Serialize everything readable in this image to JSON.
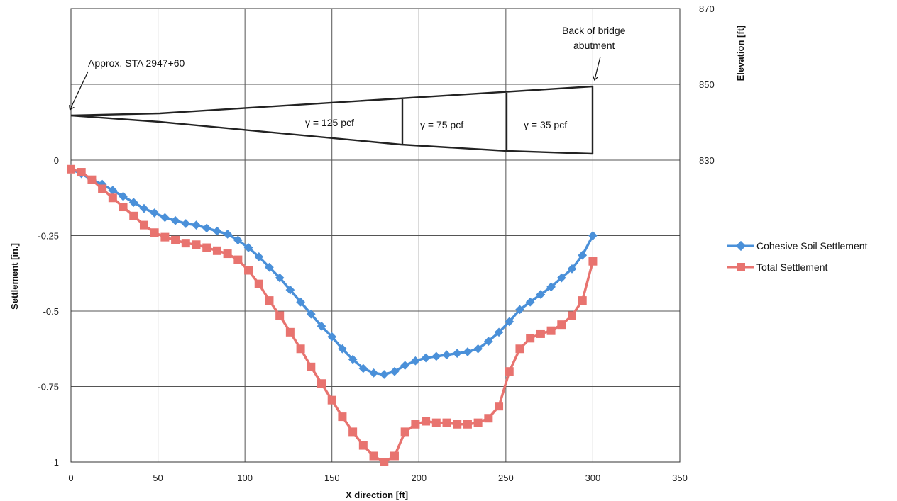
{
  "chart_data": {
    "type": "line",
    "xlabel": "X direction [ft]",
    "ylabel": "Settlement [in.]",
    "y2label": "Elevation [ft]",
    "xlim": [
      0,
      350
    ],
    "ylim": [
      -1,
      0
    ],
    "y2lim": [
      830,
      870
    ],
    "x_ticks": [
      "0",
      "50",
      "100",
      "150",
      "200",
      "250",
      "300",
      "350"
    ],
    "y_ticks": [
      "0",
      "-0.25",
      "-0.5",
      "-0.75",
      "-1"
    ],
    "y2_ticks": [
      "870",
      "850",
      "830"
    ],
    "grid": true,
    "legend_position": "right",
    "series": [
      {
        "name": "Cohesive Soil Settlement",
        "color": "#4a90d9",
        "marker": "diamond",
        "x": [
          0,
          6,
          12,
          18,
          24,
          30,
          36,
          42,
          48,
          54,
          60,
          66,
          72,
          78,
          84,
          90,
          96,
          102,
          108,
          114,
          120,
          126,
          132,
          138,
          144,
          150,
          156,
          162,
          168,
          174,
          180,
          186,
          192,
          198,
          204,
          210,
          216,
          222,
          228,
          234,
          240,
          246,
          252,
          258,
          264,
          270,
          276,
          282,
          288,
          294,
          300
        ],
        "values": [
          -0.03,
          -0.045,
          -0.065,
          -0.08,
          -0.1,
          -0.12,
          -0.14,
          -0.16,
          -0.175,
          -0.19,
          -0.2,
          -0.21,
          -0.215,
          -0.225,
          -0.235,
          -0.245,
          -0.265,
          -0.29,
          -0.32,
          -0.355,
          -0.39,
          -0.43,
          -0.47,
          -0.51,
          -0.55,
          -0.585,
          -0.625,
          -0.66,
          -0.69,
          -0.705,
          -0.71,
          -0.7,
          -0.68,
          -0.665,
          -0.655,
          -0.65,
          -0.645,
          -0.64,
          -0.635,
          -0.625,
          -0.6,
          -0.57,
          -0.535,
          -0.495,
          -0.47,
          -0.445,
          -0.42,
          -0.39,
          -0.36,
          -0.315,
          -0.25
        ]
      },
      {
        "name": "Total Settlement",
        "color": "#e8736f",
        "marker": "square",
        "x": [
          0,
          6,
          12,
          18,
          24,
          30,
          36,
          42,
          48,
          54,
          60,
          66,
          72,
          78,
          84,
          90,
          96,
          102,
          108,
          114,
          120,
          126,
          132,
          138,
          144,
          150,
          156,
          162,
          168,
          174,
          180,
          186,
          192,
          198,
          204,
          210,
          216,
          222,
          228,
          234,
          240,
          246,
          252,
          258,
          264,
          270,
          276,
          282,
          288,
          294,
          300
        ],
        "values": [
          -0.03,
          -0.04,
          -0.065,
          -0.095,
          -0.125,
          -0.155,
          -0.185,
          -0.215,
          -0.24,
          -0.255,
          -0.265,
          -0.275,
          -0.28,
          -0.29,
          -0.3,
          -0.31,
          -0.33,
          -0.365,
          -0.41,
          -0.465,
          -0.515,
          -0.57,
          -0.625,
          -0.685,
          -0.74,
          -0.795,
          -0.85,
          -0.9,
          -0.945,
          -0.98,
          -1.0,
          -0.98,
          -0.9,
          -0.875,
          -0.865,
          -0.87,
          -0.87,
          -0.875,
          -0.875,
          -0.87,
          -0.855,
          -0.815,
          -0.7,
          -0.625,
          -0.59,
          -0.575,
          -0.565,
          -0.545,
          -0.515,
          -0.465,
          -0.335
        ]
      }
    ],
    "annotations": [
      {
        "text": "Approx. STA 2947+60"
      },
      {
        "text": "Back of bridge"
      },
      {
        "text": "abutment"
      },
      {
        "text": "γ = 125 pcf"
      },
      {
        "text": "γ = 75 pcf"
      },
      {
        "text": "γ = 35 pcf"
      }
    ]
  }
}
